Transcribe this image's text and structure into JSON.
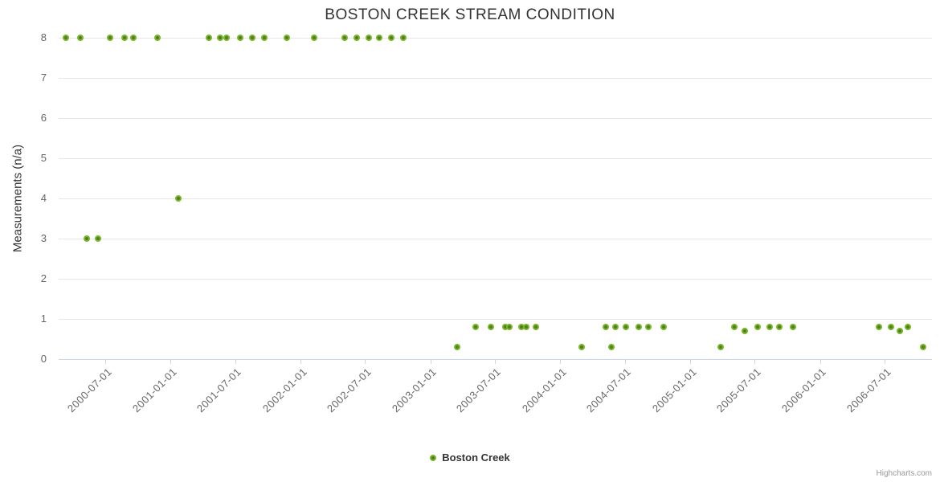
{
  "header": {
    "title": "BOSTON CREEK STREAM CONDITION"
  },
  "legend": {
    "label": "Boston Creek"
  },
  "credit": {
    "label": "Highcharts.com"
  },
  "colors": {
    "series_green": "#7ab62b",
    "marker_center": "#4e7d1c",
    "gridline": "#e6e6e6",
    "axis_line": "#ccd6eb",
    "axis_label": "#666666",
    "title_text": "#333333",
    "credit_text": "#999999"
  },
  "chart_data": {
    "type": "scatter",
    "title": "BOSTON CREEK STREAM CONDITION",
    "xlabel": "",
    "ylabel": "Measurements (n/a)",
    "ylim": [
      0,
      8
    ],
    "y_ticks": [
      0,
      1,
      2,
      3,
      4,
      5,
      6,
      7,
      8
    ],
    "x_ticks": [
      "2000-07-01",
      "2001-01-01",
      "2001-07-01",
      "2002-01-01",
      "2002-07-01",
      "2003-01-01",
      "2003-07-01",
      "2004-01-01",
      "2004-07-01",
      "2005-01-01",
      "2005-07-01",
      "2006-01-01",
      "2006-07-01"
    ],
    "grid": "horizontal-only",
    "legend_position": "bottom-center",
    "series": [
      {
        "name": "Boston Creek",
        "color": "#7ab62b",
        "points": [
          [
            "2000-03-12",
            8
          ],
          [
            "2000-04-21",
            8
          ],
          [
            "2000-05-10",
            3
          ],
          [
            "2000-06-11",
            3
          ],
          [
            "2000-07-14",
            8
          ],
          [
            "2000-08-25",
            8
          ],
          [
            "2000-09-19",
            8
          ],
          [
            "2000-11-24",
            8
          ],
          [
            "2001-01-22",
            4
          ],
          [
            "2001-04-19",
            8
          ],
          [
            "2001-05-19",
            8
          ],
          [
            "2001-06-08",
            8
          ],
          [
            "2001-07-16",
            8
          ],
          [
            "2001-08-19",
            8
          ],
          [
            "2001-09-22",
            8
          ],
          [
            "2001-11-24",
            8
          ],
          [
            "2002-02-09",
            8
          ],
          [
            "2002-05-06",
            8
          ],
          [
            "2002-06-07",
            8
          ],
          [
            "2002-07-13",
            8
          ],
          [
            "2002-08-11",
            8
          ],
          [
            "2002-09-14",
            8
          ],
          [
            "2002-10-18",
            8
          ],
          [
            "2003-03-18",
            0.3
          ],
          [
            "2003-05-09",
            0.8
          ],
          [
            "2003-06-21",
            0.8
          ],
          [
            "2003-07-30",
            0.8
          ],
          [
            "2003-08-12",
            0.8
          ],
          [
            "2003-09-13",
            0.8
          ],
          [
            "2003-09-27",
            0.8
          ],
          [
            "2003-10-25",
            0.8
          ],
          [
            "2004-03-01",
            0.3
          ],
          [
            "2004-05-08",
            0.8
          ],
          [
            "2004-05-23",
            0.3
          ],
          [
            "2004-06-05",
            0.8
          ],
          [
            "2004-07-03",
            0.8
          ],
          [
            "2004-08-08",
            0.8
          ],
          [
            "2004-09-05",
            0.8
          ],
          [
            "2004-10-17",
            0.8
          ],
          [
            "2005-03-27",
            0.3
          ],
          [
            "2005-05-04",
            0.8
          ],
          [
            "2005-06-03",
            0.7
          ],
          [
            "2005-07-10",
            0.8
          ],
          [
            "2005-08-12",
            0.8
          ],
          [
            "2005-09-09",
            0.8
          ],
          [
            "2005-10-16",
            0.8
          ],
          [
            "2006-06-16",
            0.8
          ],
          [
            "2006-07-18",
            0.8
          ],
          [
            "2006-08-14",
            0.7
          ],
          [
            "2006-09-04",
            0.8
          ],
          [
            "2006-10-17",
            0.3
          ]
        ]
      }
    ]
  }
}
